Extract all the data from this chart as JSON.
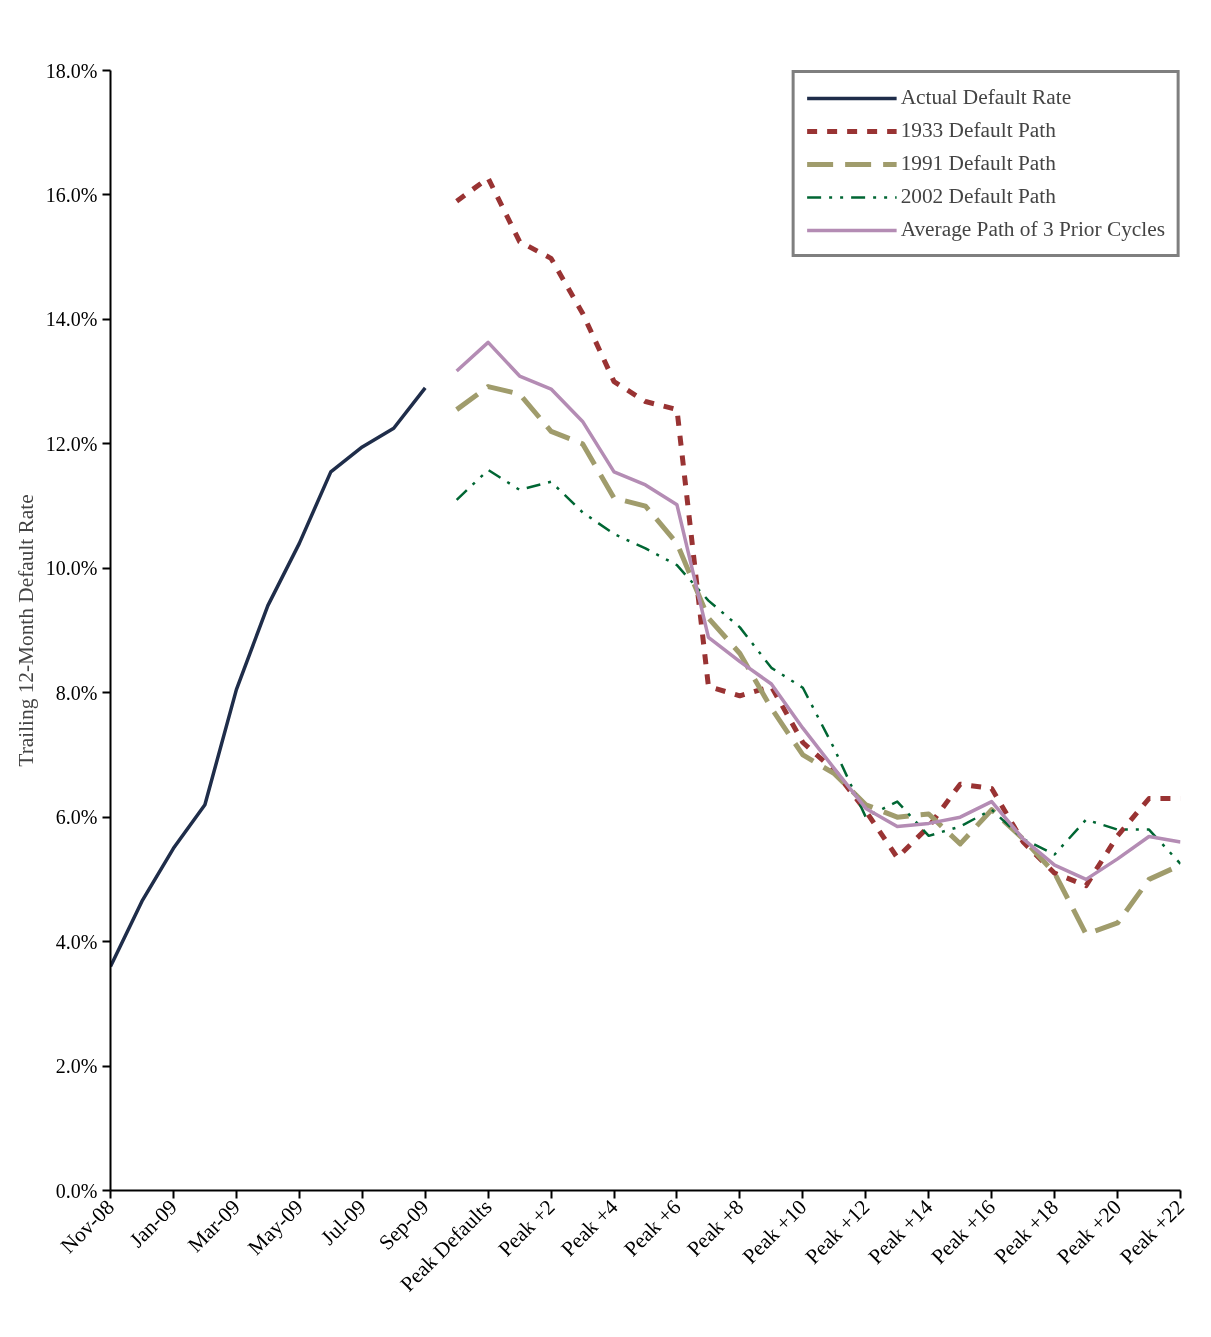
{
  "chart_data": {
    "type": "line",
    "ylabel": "Trailing 12-Month Default Rate",
    "categories": [
      "Nov-08",
      null,
      "Jan-09",
      null,
      "Mar-09",
      null,
      "May-09",
      null,
      "Jul-09",
      null,
      "Sep-09",
      null,
      "Peak Defaults",
      null,
      "Peak +2",
      null,
      "Peak +4",
      null,
      "Peak +6",
      null,
      "Peak +8",
      null,
      "Peak +10",
      null,
      "Peak +12",
      null,
      "Peak +14",
      null,
      "Peak +16",
      null,
      "Peak +18",
      null,
      "Peak +20",
      null,
      "Peak +22"
    ],
    "series": [
      {
        "name": "Actual Default Rate",
        "color": "#1f2d4a",
        "line_style": "solid",
        "values": [
          3.6,
          4.65,
          5.5,
          6.2,
          8.05,
          9.4,
          10.4,
          11.55,
          11.95,
          12.25,
          12.9,
          null,
          null,
          null,
          null,
          null,
          null,
          null,
          null,
          null,
          null,
          null,
          null,
          null,
          null,
          null,
          null,
          null,
          null,
          null,
          null,
          null,
          null,
          null,
          null
        ]
      },
      {
        "name": "1933 Default Path",
        "color": "#993333",
        "line_style": "dotted",
        "values": [
          null,
          null,
          null,
          null,
          null,
          null,
          null,
          null,
          null,
          null,
          null,
          15.9,
          16.27,
          15.25,
          14.98,
          14.1,
          13.0,
          12.68,
          12.55,
          8.1,
          7.95,
          8.1,
          7.2,
          6.75,
          6.1,
          5.35,
          5.85,
          6.53,
          6.46,
          5.6,
          5.1,
          4.9,
          5.7,
          6.3,
          6.3
        ]
      },
      {
        "name": "1991 Default Path",
        "color": "#a09c6c",
        "line_style": "dashed",
        "values": [
          null,
          null,
          null,
          null,
          null,
          null,
          null,
          null,
          null,
          null,
          null,
          12.55,
          12.92,
          12.8,
          12.2,
          12.0,
          11.13,
          11.0,
          10.4,
          9.2,
          8.63,
          7.75,
          7.0,
          6.7,
          6.2,
          6.0,
          6.05,
          5.57,
          6.12,
          5.65,
          5.1,
          4.12,
          4.3,
          5.0,
          5.23
        ]
      },
      {
        "name": "2002 Default Path",
        "color": "#006633",
        "line_style": "dashdot",
        "values": [
          null,
          null,
          null,
          null,
          null,
          null,
          null,
          null,
          null,
          null,
          null,
          11.1,
          11.58,
          11.26,
          11.39,
          10.9,
          10.55,
          10.32,
          10.05,
          9.48,
          9.05,
          8.4,
          8.08,
          7.1,
          6.0,
          6.25,
          5.7,
          5.85,
          6.12,
          5.65,
          5.4,
          5.96,
          5.8,
          5.8,
          5.25
        ]
      },
      {
        "name": "Average Path of 3 Prior Cycles",
        "color": "#b48cb4",
        "line_style": "solid",
        "values": [
          null,
          null,
          null,
          null,
          null,
          null,
          null,
          null,
          null,
          null,
          null,
          13.17,
          13.63,
          13.09,
          12.88,
          12.36,
          11.55,
          11.34,
          11.02,
          8.89,
          8.5,
          8.14,
          7.43,
          6.78,
          6.14,
          5.85,
          5.9,
          6.0,
          6.25,
          5.65,
          5.23,
          5.0,
          5.33,
          5.69,
          5.6
        ]
      }
    ],
    "ylim": [
      0,
      18
    ],
    "yticks": [
      {
        "value": 0,
        "label": "0.0%"
      },
      {
        "value": 2,
        "label": "2.0%"
      },
      {
        "value": 4,
        "label": "4.0%"
      },
      {
        "value": 6,
        "label": "6.0%"
      },
      {
        "value": 8,
        "label": "8.0%"
      },
      {
        "value": 10,
        "label": "10.0%"
      },
      {
        "value": 12,
        "label": "12.0%"
      },
      {
        "value": 14,
        "label": "14.0%"
      },
      {
        "value": 16,
        "label": "16.0%"
      },
      {
        "value": 18,
        "label": "18.0%"
      }
    ],
    "grid": false,
    "legend": "top right",
    "marker": "none"
  }
}
